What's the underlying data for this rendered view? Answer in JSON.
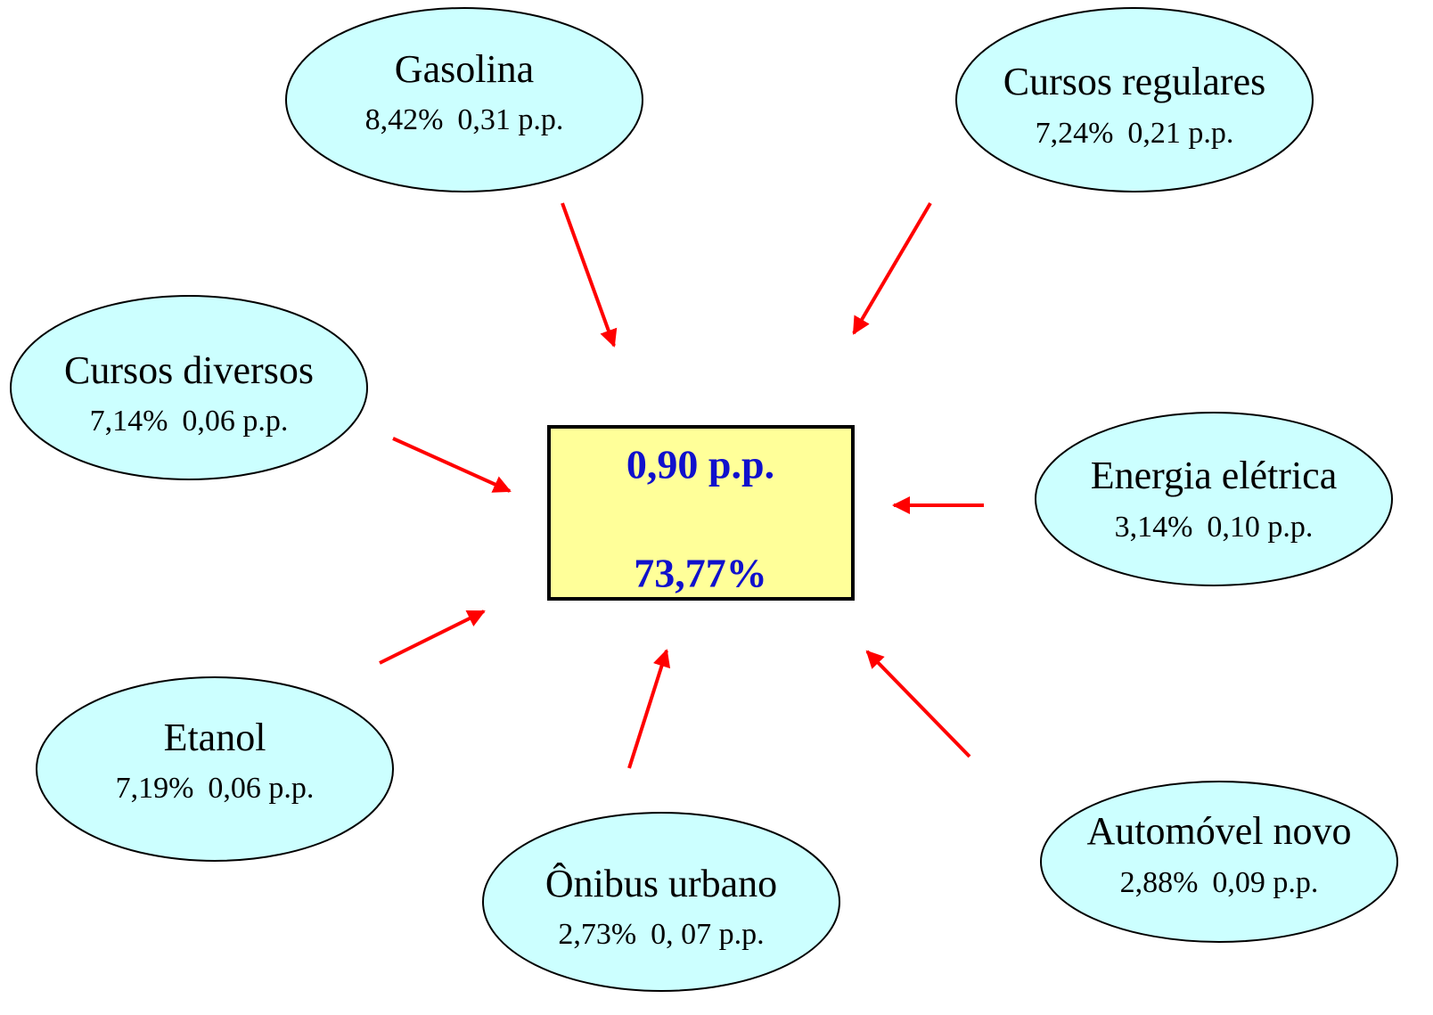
{
  "center": {
    "contribution": "0,90 p.p.",
    "share": "73,77%"
  },
  "nodes": [
    {
      "label": "Gasolina",
      "change": "8,42%",
      "contribution": "0,31 p.p."
    },
    {
      "label": "Cursos regulares",
      "change": "7,24%",
      "contribution": "0,21 p.p."
    },
    {
      "label": "Cursos diversos",
      "change": "7,14%",
      "contribution": "0,06 p.p."
    },
    {
      "label": "Energia elétrica",
      "change": "3,14%",
      "contribution": "0,10 p.p."
    },
    {
      "label": "Etanol",
      "change": "7,19%",
      "contribution": "0,06 p.p."
    },
    {
      "label": "Ônibus urbano",
      "change": "2,73%",
      "contribution": "0, 07 p.p."
    },
    {
      "label": "Automóvel novo",
      "change": "2,88%",
      "contribution": "0,09 p.p."
    }
  ]
}
